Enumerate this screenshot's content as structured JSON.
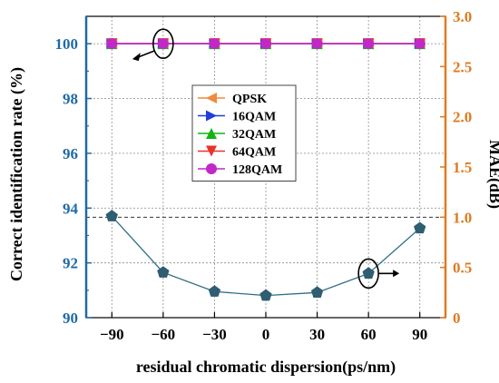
{
  "chart_data": {
    "type": "line",
    "xlabel": "residual chromatic dispersion(ps/nm)",
    "ylabel_left": "Correct identification rate (%)",
    "ylabel_right": "MAE(dB)",
    "x": [
      -90,
      -60,
      -30,
      0,
      30,
      60,
      90
    ],
    "x_ticks": [
      "−90",
      "−60",
      "−30",
      "0",
      "30",
      "60",
      "90"
    ],
    "xlim": [
      -105,
      105
    ],
    "ylim_left": [
      90,
      101
    ],
    "yticks_left": [
      "90",
      "92",
      "94",
      "96",
      "98",
      "100"
    ],
    "ylim_right": [
      0,
      3.0
    ],
    "yticks_right": [
      "0",
      "0.5",
      "1.0",
      "1.5",
      "2.0",
      "2.5",
      "3.0"
    ],
    "grid": true,
    "legend_position": "center",
    "series": [
      {
        "name": "QPSK",
        "axis": "left",
        "color": "#f08a3c",
        "marker": "triangle-left",
        "values": [
          100,
          100,
          100,
          100,
          100,
          100,
          100
        ]
      },
      {
        "name": "16QAM",
        "axis": "left",
        "color": "#1f3fd8",
        "marker": "triangle-right",
        "values": [
          100,
          100,
          100,
          100,
          100,
          100,
          100
        ]
      },
      {
        "name": "32QAM",
        "axis": "left",
        "color": "#12b312",
        "marker": "triangle-up",
        "values": [
          100,
          100,
          100,
          100,
          100,
          100,
          100
        ]
      },
      {
        "name": "64QAM",
        "axis": "left",
        "color": "#e8322a",
        "marker": "triangle-down",
        "values": [
          100,
          100,
          100,
          100,
          100,
          100,
          100
        ]
      },
      {
        "name": "128QAM",
        "axis": "left",
        "color": "#c028c8",
        "marker": "circle",
        "values": [
          100,
          100,
          100,
          100,
          100,
          100,
          100
        ]
      },
      {
        "name": "",
        "axis": "right",
        "color": "#2e6e82",
        "marker": "pentagon",
        "values": [
          1.01,
          0.45,
          0.26,
          0.22,
          0.25,
          0.44,
          0.89
        ]
      }
    ],
    "reference_line_right": 1.0,
    "colors": {
      "left_axis": "#1f6aa5",
      "right_axis": "#e07a1f",
      "mae_line": "#2e6e82",
      "mae_marker": "#2f5d72"
    }
  }
}
